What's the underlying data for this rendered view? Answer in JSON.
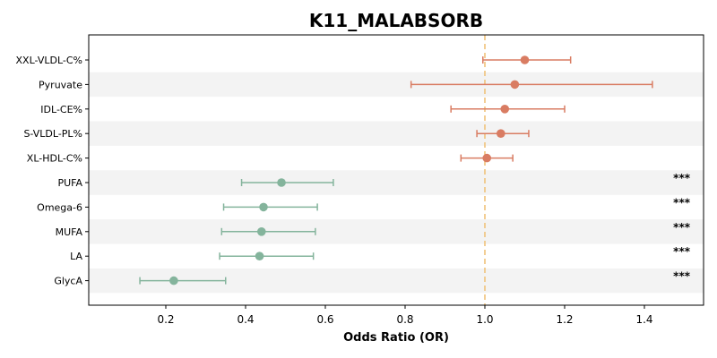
{
  "chart_data": {
    "type": "forest",
    "title": "K11_MALABSORB",
    "xlabel": "Odds Ratio (OR)",
    "xlim": [
      0.02,
      1.55
    ],
    "xticks": [
      0.2,
      0.4,
      0.6,
      0.8,
      1.0,
      1.2,
      1.4
    ],
    "xtick_labels": [
      "0.2",
      "0.4",
      "0.6",
      "0.8",
      "1.0",
      "1.2",
      "1.4"
    ],
    "reference_line": 1.0,
    "reference_color": "#f0c27a",
    "colors": {
      "up": "#d97c62",
      "down": "#84b49c"
    },
    "rows": [
      {
        "label": "XXL-VLDL-C%",
        "or": 1.1,
        "lo": 0.995,
        "hi": 1.215,
        "sig": ""
      },
      {
        "label": "Pyruvate",
        "or": 1.075,
        "lo": 0.815,
        "hi": 1.42,
        "sig": ""
      },
      {
        "label": "IDL-CE%",
        "or": 1.05,
        "lo": 0.915,
        "hi": 1.2,
        "sig": ""
      },
      {
        "label": "S-VLDL-PL%",
        "or": 1.04,
        "lo": 0.98,
        "hi": 1.11,
        "sig": ""
      },
      {
        "label": "XL-HDL-C%",
        "or": 1.005,
        "lo": 0.94,
        "hi": 1.07,
        "sig": ""
      },
      {
        "label": "PUFA",
        "or": 0.49,
        "lo": 0.39,
        "hi": 0.62,
        "sig": "***"
      },
      {
        "label": "Omega-6",
        "or": 0.445,
        "lo": 0.345,
        "hi": 0.58,
        "sig": "***"
      },
      {
        "label": "MUFA",
        "or": 0.44,
        "lo": 0.34,
        "hi": 0.575,
        "sig": "***"
      },
      {
        "label": "LA",
        "or": 0.435,
        "lo": 0.335,
        "hi": 0.57,
        "sig": "***"
      },
      {
        "label": "GlycA",
        "or": 0.22,
        "lo": 0.135,
        "hi": 0.35,
        "sig": "***"
      }
    ]
  }
}
